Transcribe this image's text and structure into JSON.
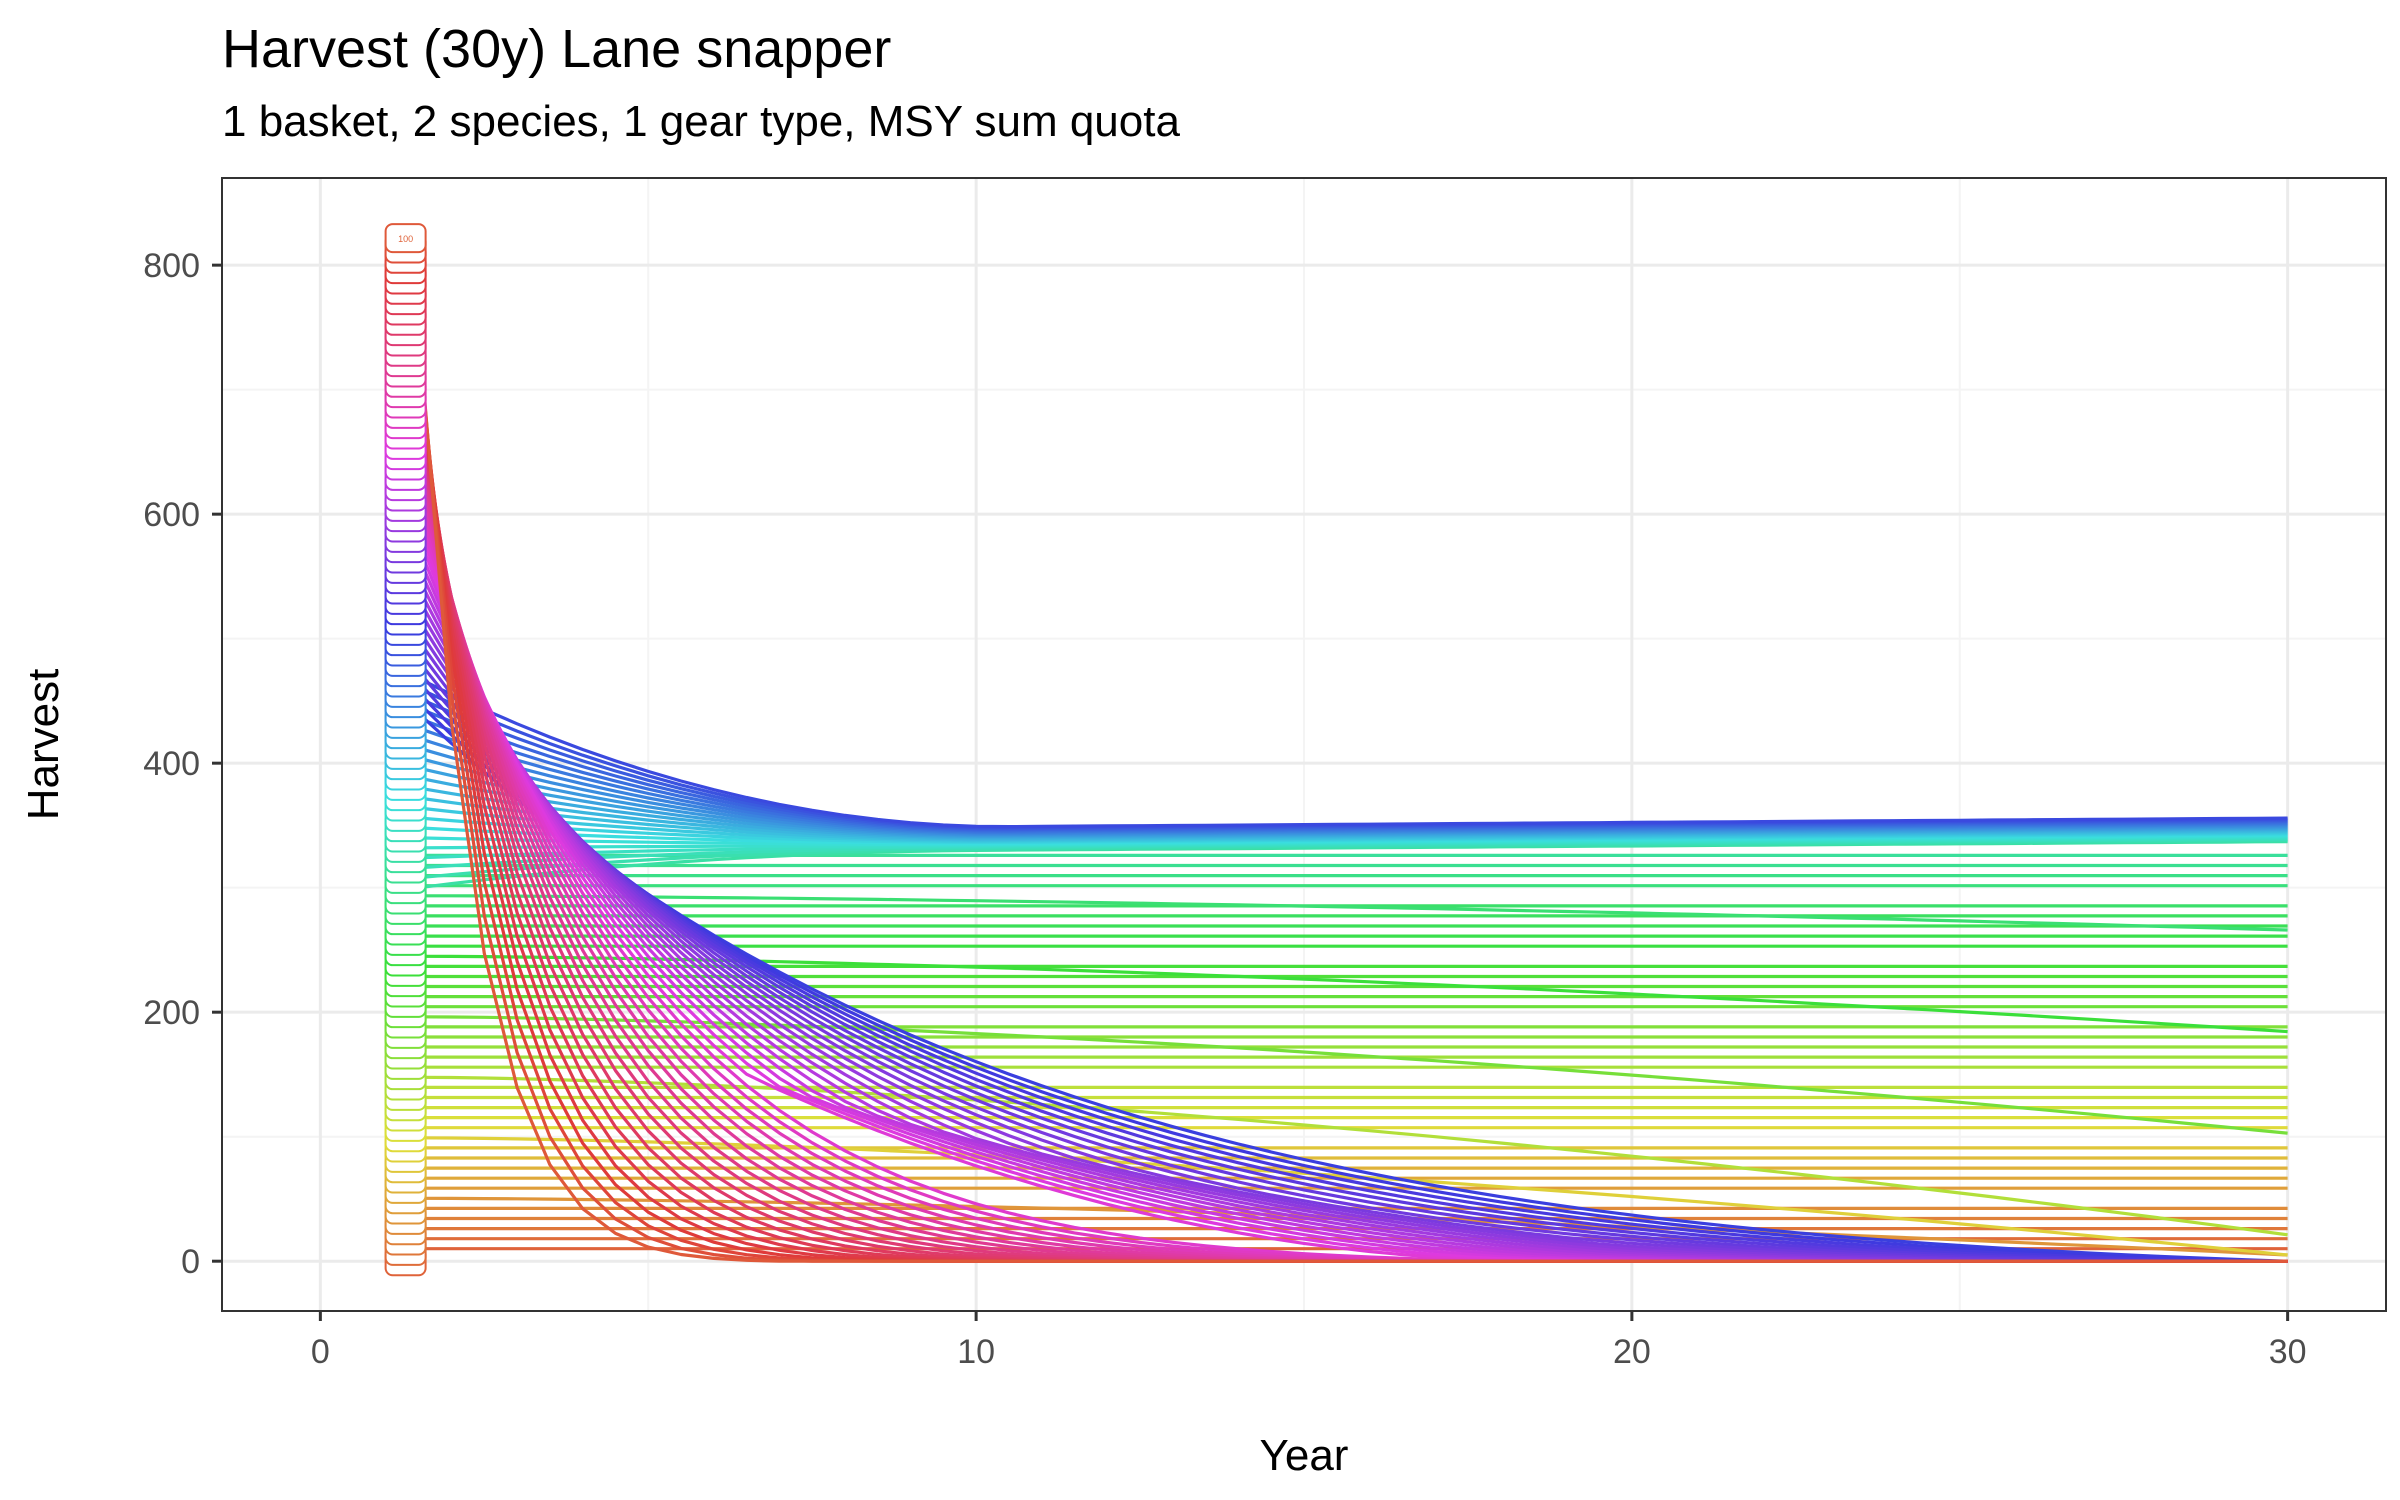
{
  "chart_data": {
    "type": "line",
    "title": "Harvest (30y) Lane snapper",
    "subtitle": "1 basket, 2 species, 1 gear type, MSY sum quota",
    "xlabel": "Year",
    "ylabel": "Harvest",
    "xlim": [
      -1.5,
      31.5
    ],
    "ylim": [
      -40,
      870
    ],
    "x_ticks": [
      0,
      10,
      20,
      30
    ],
    "y_ticks": [
      0,
      200,
      400,
      600,
      800
    ],
    "x_tick_labels": [
      "0",
      "10",
      "20",
      "30"
    ],
    "y_tick_labels": [
      "0",
      "200",
      "400",
      "600",
      "800"
    ],
    "grid": true,
    "legend": "none",
    "series_count": 100,
    "series_start_label": "100",
    "palette": "hue",
    "series_families": {
      "note": "100 harvest trajectories over years 1.5-30; each starts at a labelled box near year 1.3",
      "high_effort": {
        "start_range": [
          50,
          750
        ],
        "declines_to_zero_by_year": 7
      },
      "medium_effort": {
        "start_range": [
          300,
          430
        ],
        "converges_to": 345
      },
      "low_effort": {
        "start_range": [
          10,
          330
        ],
        "roughly_flat": true,
        "endpoints_year30": [
          5,
          30,
          95,
          185,
          255,
          295,
          350
        ]
      }
    }
  },
  "colors": {
    "background": "#ffffff",
    "panel_border": "#333333",
    "grid_major": "#ebebeb",
    "grid_minor": "#f4f4f4",
    "tick_text": "#4d4d4d"
  }
}
